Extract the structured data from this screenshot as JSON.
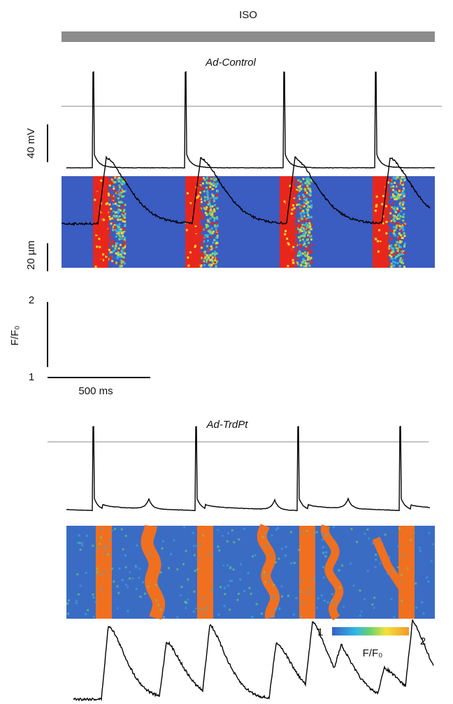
{
  "title": "ISO",
  "panels": [
    {
      "label": "Ad-Control"
    },
    {
      "label": "Ad-TrdPt"
    }
  ],
  "scale": {
    "voltage": "40 mV",
    "length": "20 µm",
    "ratio_axis": "F/F₀",
    "ratio_max": "2",
    "ratio_min": "1",
    "time": "500 ms"
  },
  "colorbar": {
    "min": "1",
    "max": "2",
    "label": "F/F₀"
  }
}
